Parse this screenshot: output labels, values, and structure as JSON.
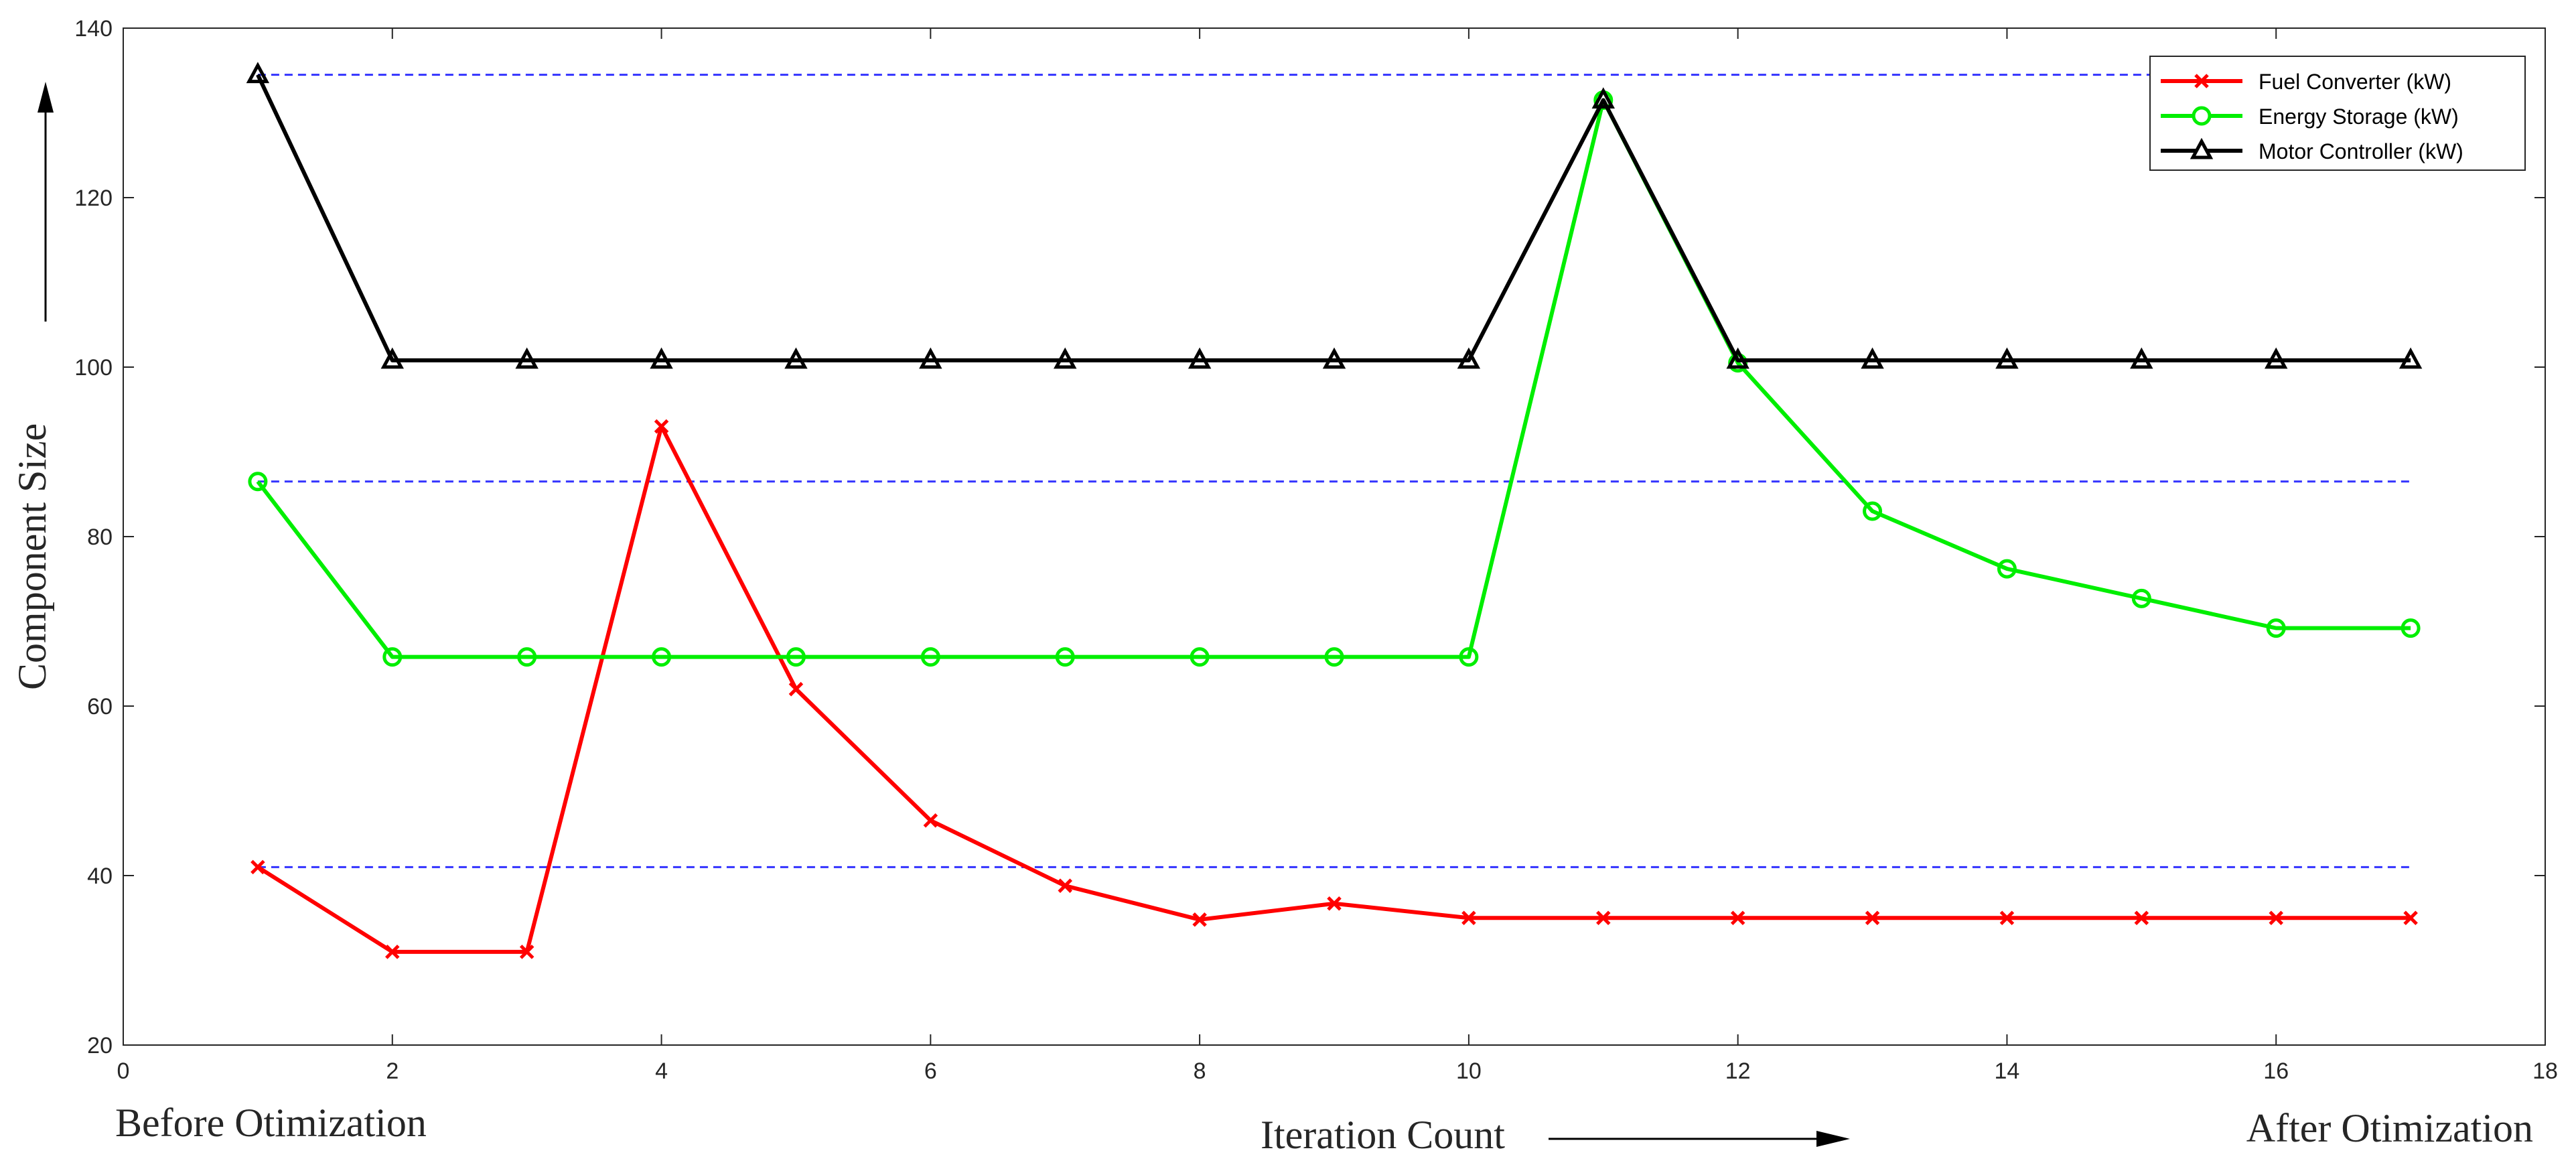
{
  "chart_data": {
    "type": "line",
    "xlabel": "Iteration Count",
    "ylabel": "Component Size",
    "left_note": "Before Otimization",
    "right_note": "After Otimization",
    "xlim": [
      0,
      18
    ],
    "ylim": [
      20,
      140
    ],
    "xticks": [
      0,
      2,
      4,
      6,
      8,
      10,
      12,
      14,
      16,
      18
    ],
    "yticks": [
      20,
      40,
      60,
      80,
      100,
      120,
      140
    ],
    "grid": false,
    "legend_position": "top-right",
    "x": [
      1,
      2,
      3,
      4,
      5,
      6,
      7,
      8,
      9,
      10,
      11,
      12,
      13,
      14,
      15,
      16,
      17
    ],
    "series": [
      {
        "name": "Fuel Converter (kW)",
        "color": "#ff0000",
        "marker": "x",
        "values": [
          41,
          31,
          31,
          93,
          62,
          46.5,
          38.8,
          34.8,
          36.7,
          35,
          35,
          35,
          35,
          35,
          35,
          35,
          35
        ]
      },
      {
        "name": "Energy Storage (kW)",
        "color": "#00ee00",
        "marker": "circle",
        "values": [
          86.5,
          65.8,
          65.8,
          65.8,
          65.8,
          65.8,
          65.8,
          65.8,
          65.8,
          65.8,
          131.5,
          100.5,
          83,
          76.2,
          72.7,
          69.2,
          69.2
        ]
      },
      {
        "name": "Motor Controller (kW)",
        "color": "#000000",
        "marker": "triangle",
        "values": [
          134.5,
          100.8,
          100.8,
          100.8,
          100.8,
          100.8,
          100.8,
          100.8,
          100.8,
          100.8,
          131.5,
          100.8,
          100.8,
          100.8,
          100.8,
          100.8,
          100.8
        ]
      }
    ],
    "reference_lines": [
      {
        "y": 134.5,
        "x_from": 1,
        "x_to": 17,
        "color": "#3333ff",
        "style": "dashed"
      },
      {
        "y": 86.5,
        "x_from": 1,
        "x_to": 17,
        "color": "#3333ff",
        "style": "dashed"
      },
      {
        "y": 41,
        "x_from": 1,
        "x_to": 17,
        "color": "#3333ff",
        "style": "dashed"
      }
    ]
  }
}
